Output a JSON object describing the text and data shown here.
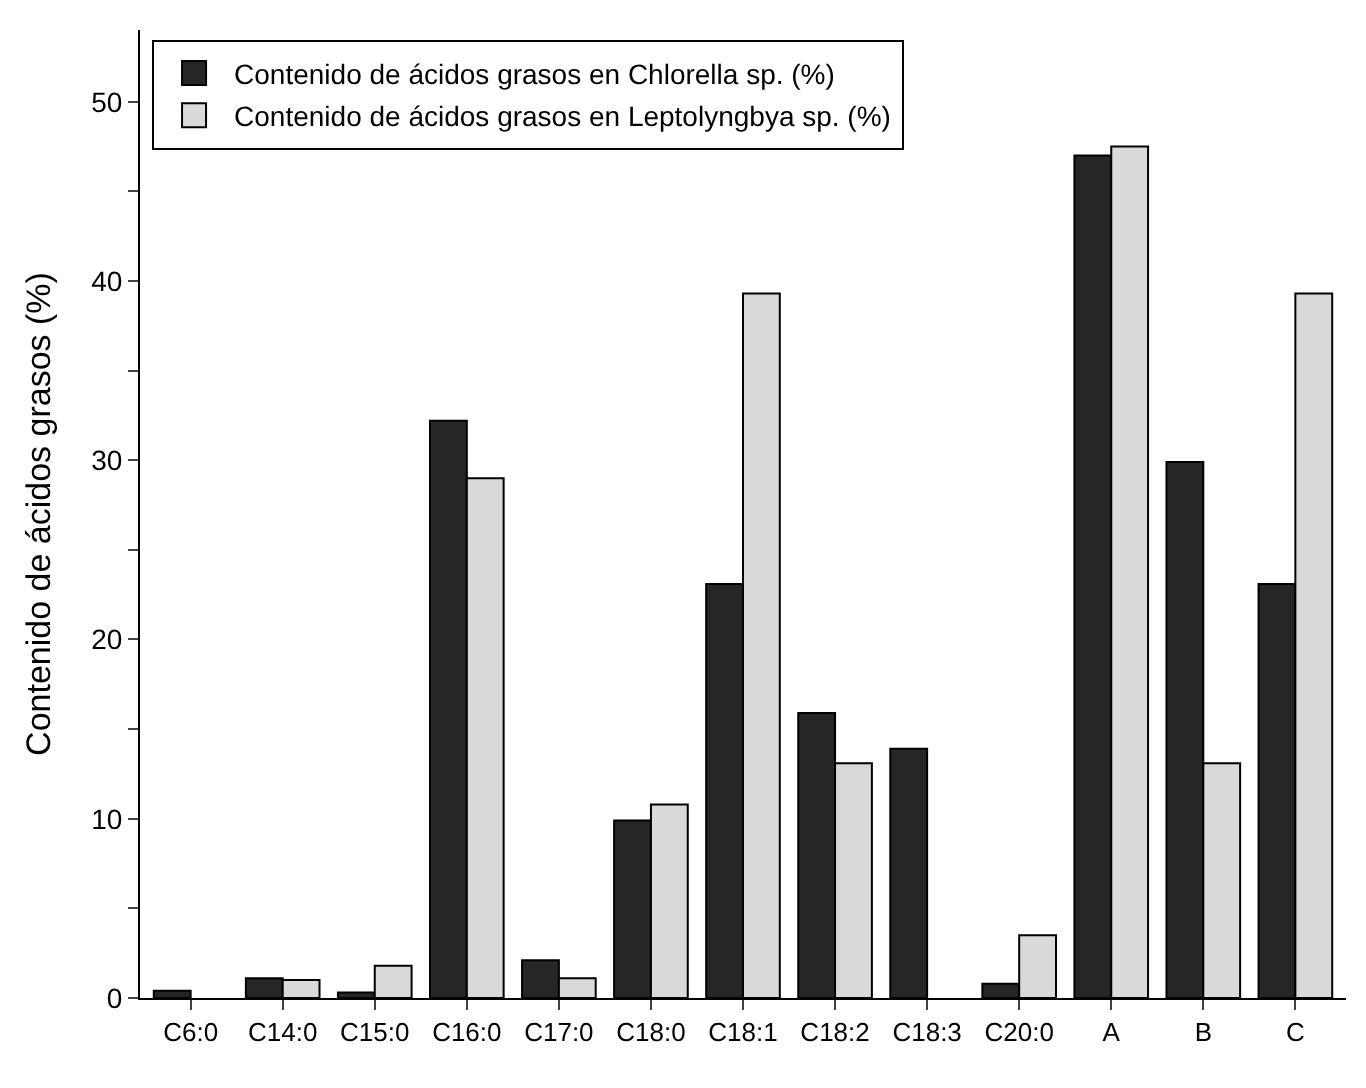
{
  "chart_data": {
    "type": "bar",
    "ylabel": "Contenido de ácidos grasos (%)",
    "categories": [
      "C6:0",
      "C14:0",
      "C15:0",
      "C16:0",
      "C17:0",
      "C18:0",
      "C18:1",
      "C18:2",
      "C18:3",
      "C20:0",
      "A",
      "B",
      "C"
    ],
    "series": [
      {
        "name": "Contenido de ácidos grasos en Chlorella sp. (%)",
        "color": "#262626",
        "values": [
          0.4,
          1.1,
          0.3,
          32.2,
          2.1,
          9.9,
          23.1,
          15.9,
          13.9,
          0.8,
          47.0,
          29.9,
          23.1
        ]
      },
      {
        "name": "Contenido de ácidos grasos en Leptolyngbya sp. (%)",
        "color": "#d9d9d9",
        "values": [
          null,
          1.0,
          1.8,
          29.0,
          1.1,
          10.8,
          39.3,
          13.1,
          null,
          3.5,
          47.5,
          13.1,
          39.3
        ]
      }
    ],
    "ylim": [
      0,
      54
    ],
    "yticks": [
      0,
      {
        "value": 5,
        "label": null
      },
      10,
      {
        "value": 15,
        "label": null
      },
      20,
      {
        "value": 25,
        "label": null
      },
      30,
      {
        "value": 35,
        "label": null
      },
      40,
      {
        "value": 45,
        "label": null
      },
      50
    ],
    "legend": "top left"
  }
}
